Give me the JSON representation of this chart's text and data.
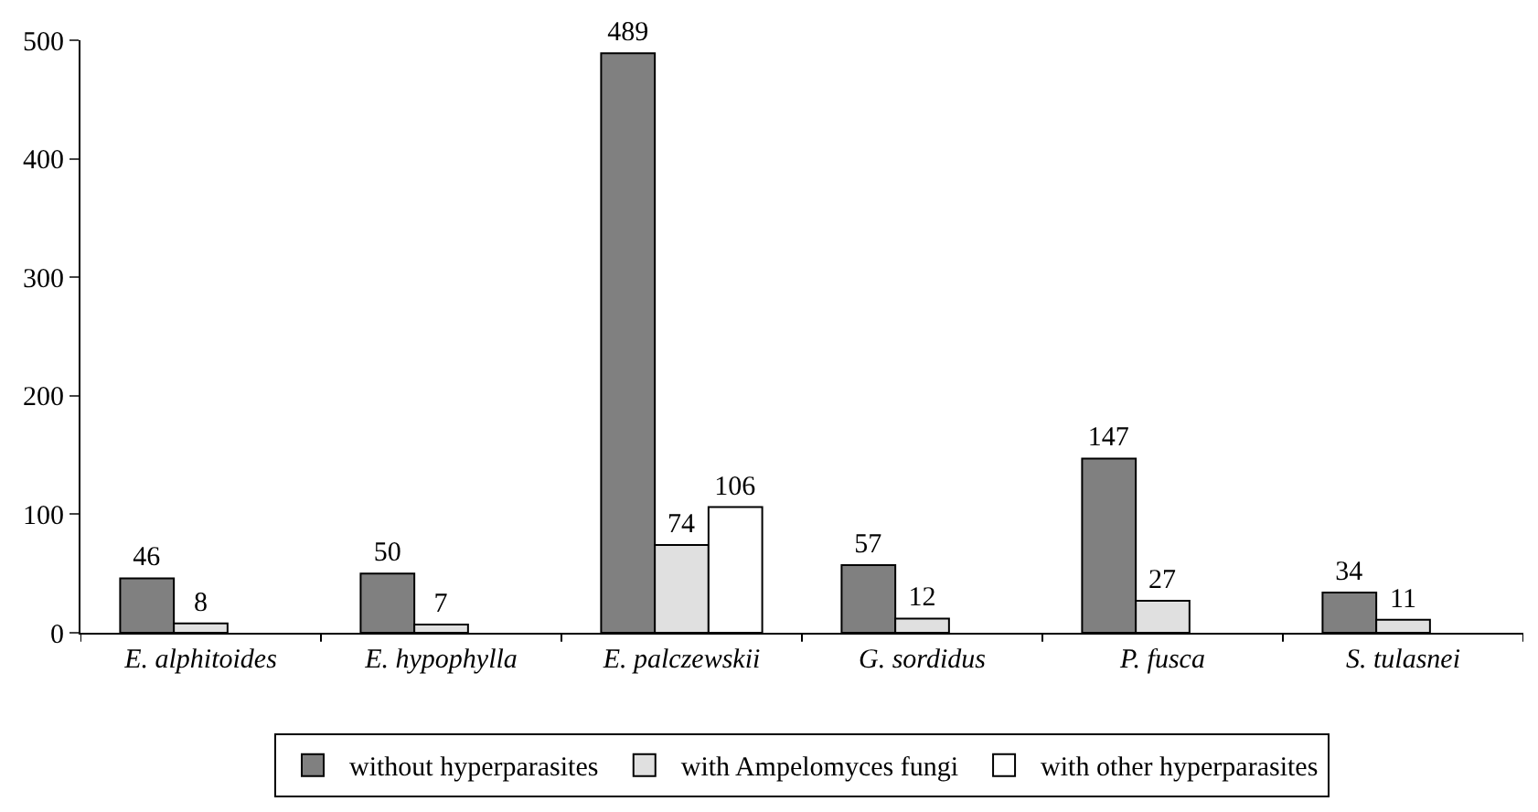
{
  "chart_data": {
    "type": "bar",
    "categories": [
      "E. alphitoides",
      "E. hypophylla",
      "E. palczewskii",
      "G. sordidus",
      "P. fusca",
      "S. tulasnei"
    ],
    "series": [
      {
        "name": "without hyperparasites",
        "color": "#808080",
        "values": [
          46,
          50,
          489,
          57,
          147,
          34
        ]
      },
      {
        "name": "with Ampelomyces fungi",
        "color": "#e0e0e0",
        "values": [
          8,
          7,
          74,
          12,
          27,
          11
        ]
      },
      {
        "name": "with other hyperparasites",
        "color": "#ffffff",
        "values": [
          null,
          null,
          106,
          null,
          null,
          null
        ]
      }
    ],
    "ylim": [
      0,
      500
    ],
    "yticks": [
      0,
      100,
      200,
      300,
      400,
      500
    ],
    "data_labels": true,
    "legend": "bottom"
  }
}
